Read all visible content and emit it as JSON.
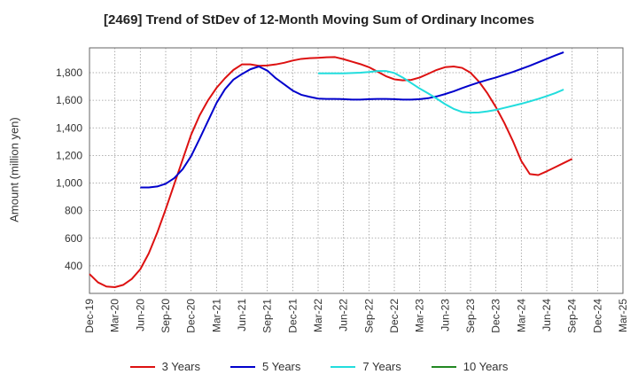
{
  "chart_data": {
    "type": "line",
    "title": "[2469]  Trend of StDev of 12-Month Moving Sum of Ordinary Incomes",
    "xlabel": "",
    "ylabel": "Amount (million yen)",
    "x_ticks": [
      "Dec-19",
      "Mar-20",
      "Jun-20",
      "Sep-20",
      "Dec-20",
      "Mar-21",
      "Jun-21",
      "Sep-21",
      "Dec-21",
      "Mar-22",
      "Jun-22",
      "Sep-22",
      "Dec-22",
      "Mar-23",
      "Jun-23",
      "Sep-23",
      "Dec-23",
      "Mar-24",
      "Jun-24",
      "Sep-24",
      "Dec-24",
      "Mar-25"
    ],
    "y_ticks": [
      400,
      600,
      800,
      1000,
      1200,
      1400,
      1600,
      1800
    ],
    "ylim": [
      200,
      1980
    ],
    "grid": true,
    "legend_position": "bottom",
    "series": [
      {
        "name": "3 Years",
        "color": "#dd1111",
        "points": [
          [
            0,
            340
          ],
          [
            1,
            280
          ],
          [
            2,
            250
          ],
          [
            3,
            245
          ],
          [
            4,
            262
          ],
          [
            5,
            305
          ],
          [
            6,
            375
          ],
          [
            7,
            490
          ],
          [
            8,
            640
          ],
          [
            9,
            810
          ],
          [
            10,
            990
          ],
          [
            11,
            1170
          ],
          [
            12,
            1350
          ],
          [
            13,
            1490
          ],
          [
            14,
            1600
          ],
          [
            15,
            1690
          ],
          [
            16,
            1760
          ],
          [
            17,
            1820
          ],
          [
            18,
            1860
          ],
          [
            19,
            1860
          ],
          [
            20,
            1850
          ],
          [
            21,
            1852
          ],
          [
            22,
            1860
          ],
          [
            23,
            1872
          ],
          [
            24,
            1888
          ],
          [
            25,
            1900
          ],
          [
            26,
            1905
          ],
          [
            27,
            1908
          ],
          [
            28,
            1912
          ],
          [
            29,
            1913
          ],
          [
            30,
            1898
          ],
          [
            31,
            1880
          ],
          [
            32,
            1862
          ],
          [
            33,
            1840
          ],
          [
            34,
            1808
          ],
          [
            35,
            1775
          ],
          [
            36,
            1752
          ],
          [
            37,
            1745
          ],
          [
            38,
            1748
          ],
          [
            39,
            1765
          ],
          [
            40,
            1792
          ],
          [
            41,
            1820
          ],
          [
            42,
            1840
          ],
          [
            43,
            1845
          ],
          [
            44,
            1835
          ],
          [
            45,
            1800
          ],
          [
            46,
            1735
          ],
          [
            47,
            1650
          ],
          [
            48,
            1550
          ],
          [
            49,
            1435
          ],
          [
            50,
            1305
          ],
          [
            51,
            1160
          ],
          [
            52,
            1065
          ],
          [
            53,
            1058
          ],
          [
            54,
            1085
          ],
          [
            55,
            1115
          ],
          [
            56,
            1145
          ],
          [
            57,
            1175
          ]
        ]
      },
      {
        "name": "5 Years",
        "color": "#0000cc",
        "points": [
          [
            6,
            968
          ],
          [
            7,
            968
          ],
          [
            8,
            975
          ],
          [
            9,
            995
          ],
          [
            10,
            1035
          ],
          [
            11,
            1100
          ],
          [
            12,
            1195
          ],
          [
            13,
            1320
          ],
          [
            14,
            1450
          ],
          [
            15,
            1580
          ],
          [
            16,
            1680
          ],
          [
            17,
            1750
          ],
          [
            18,
            1790
          ],
          [
            19,
            1825
          ],
          [
            20,
            1845
          ],
          [
            21,
            1815
          ],
          [
            22,
            1760
          ],
          [
            23,
            1715
          ],
          [
            24,
            1670
          ],
          [
            25,
            1640
          ],
          [
            26,
            1625
          ],
          [
            27,
            1612
          ],
          [
            28,
            1610
          ],
          [
            29,
            1610
          ],
          [
            30,
            1608
          ],
          [
            31,
            1605
          ],
          [
            32,
            1605
          ],
          [
            33,
            1608
          ],
          [
            34,
            1610
          ],
          [
            35,
            1610
          ],
          [
            36,
            1608
          ],
          [
            37,
            1605
          ],
          [
            38,
            1605
          ],
          [
            39,
            1608
          ],
          [
            40,
            1615
          ],
          [
            41,
            1628
          ],
          [
            42,
            1645
          ],
          [
            43,
            1665
          ],
          [
            44,
            1688
          ],
          [
            45,
            1710
          ],
          [
            46,
            1730
          ],
          [
            47,
            1748
          ],
          [
            48,
            1765
          ],
          [
            49,
            1785
          ],
          [
            50,
            1805
          ],
          [
            51,
            1828
          ],
          [
            52,
            1850
          ],
          [
            53,
            1875
          ],
          [
            54,
            1900
          ],
          [
            55,
            1925
          ],
          [
            56,
            1948
          ]
        ]
      },
      {
        "name": "7 Years",
        "color": "#22dddd",
        "points": [
          [
            27,
            1795
          ],
          [
            28,
            1795
          ],
          [
            29,
            1795
          ],
          [
            30,
            1795
          ],
          [
            31,
            1798
          ],
          [
            32,
            1800
          ],
          [
            33,
            1805
          ],
          [
            34,
            1812
          ],
          [
            35,
            1812
          ],
          [
            36,
            1798
          ],
          [
            37,
            1765
          ],
          [
            38,
            1725
          ],
          [
            39,
            1685
          ],
          [
            40,
            1650
          ],
          [
            41,
            1612
          ],
          [
            42,
            1572
          ],
          [
            43,
            1538
          ],
          [
            44,
            1515
          ],
          [
            45,
            1510
          ],
          [
            46,
            1512
          ],
          [
            47,
            1520
          ],
          [
            48,
            1530
          ],
          [
            49,
            1545
          ],
          [
            50,
            1560
          ],
          [
            51,
            1575
          ],
          [
            52,
            1592
          ],
          [
            53,
            1610
          ],
          [
            54,
            1630
          ],
          [
            55,
            1652
          ],
          [
            56,
            1678
          ]
        ]
      },
      {
        "name": "10 Years",
        "color": "#228822",
        "points": []
      }
    ]
  }
}
